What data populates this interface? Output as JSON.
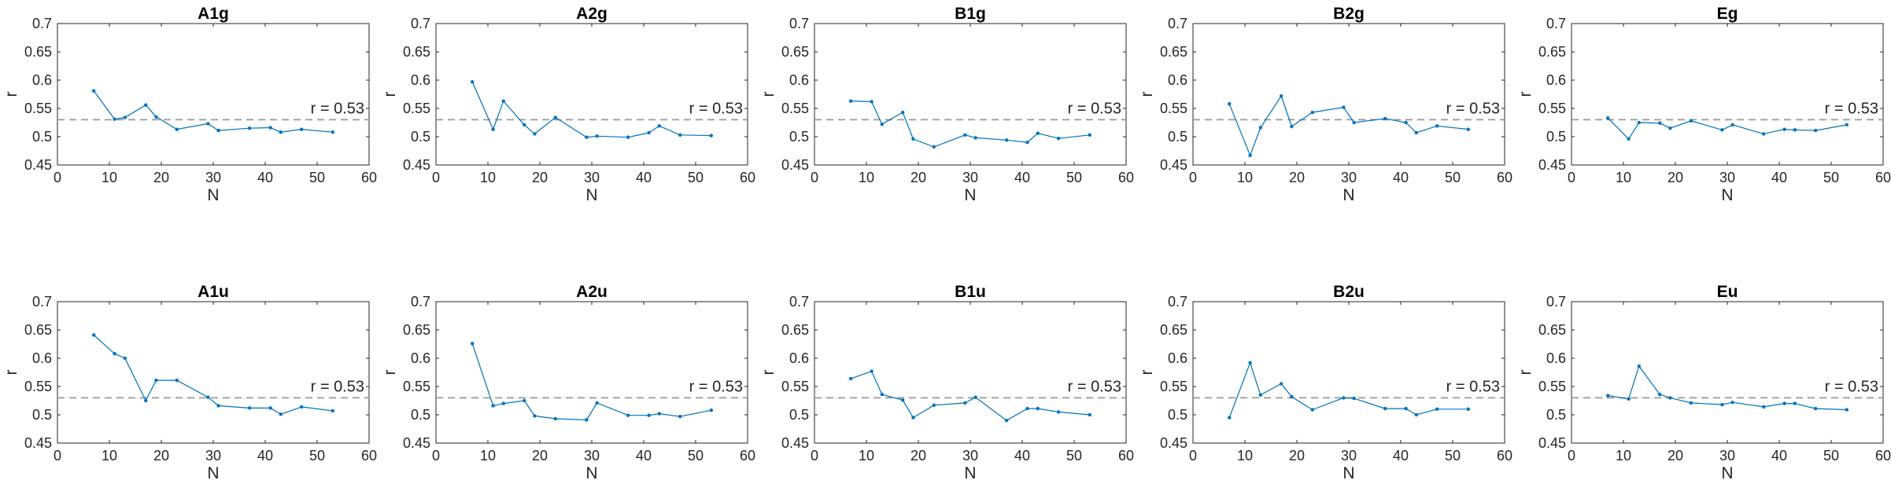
{
  "figure": {
    "xlabel": "N",
    "ylabel": "r",
    "xlim": [
      0,
      60
    ],
    "ylim": [
      0.45,
      0.7
    ],
    "xticks": [
      "0",
      "10",
      "20",
      "30",
      "40",
      "50",
      "60"
    ],
    "yticks": [
      "0.45",
      "0.5",
      "0.55",
      "0.6",
      "0.65",
      "0.7"
    ],
    "reference": {
      "value": 0.53,
      "label": "r = 0.53",
      "style": "dashed",
      "color": "#999999"
    },
    "line_color": "#0072BD",
    "grid": false,
    "layout": "2 rows x 5 columns"
  },
  "chart_data": [
    {
      "type": "line",
      "title": "A1g",
      "xlabel": "N",
      "ylabel": "r",
      "xlim": [
        0,
        60
      ],
      "ylim": [
        0.45,
        0.7
      ],
      "x": [
        7,
        11,
        13,
        17,
        19,
        23,
        29,
        31,
        37,
        41,
        43,
        47,
        53
      ],
      "y": [
        0.581,
        0.531,
        0.534,
        0.556,
        0.535,
        0.513,
        0.523,
        0.511,
        0.515,
        0.516,
        0.508,
        0.513,
        0.508
      ]
    },
    {
      "type": "line",
      "title": "A2g",
      "xlabel": "N",
      "ylabel": "r",
      "xlim": [
        0,
        60
      ],
      "ylim": [
        0.45,
        0.7
      ],
      "x": [
        7,
        11,
        13,
        17,
        19,
        23,
        29,
        31,
        37,
        41,
        43,
        47,
        53
      ],
      "y": [
        0.597,
        0.513,
        0.563,
        0.521,
        0.505,
        0.534,
        0.499,
        0.501,
        0.499,
        0.507,
        0.519,
        0.503,
        0.502
      ]
    },
    {
      "type": "line",
      "title": "B1g",
      "xlabel": "N",
      "ylabel": "r",
      "xlim": [
        0,
        60
      ],
      "ylim": [
        0.45,
        0.7
      ],
      "x": [
        7,
        11,
        13,
        17,
        19,
        23,
        29,
        31,
        37,
        41,
        43,
        47,
        53
      ],
      "y": [
        0.563,
        0.562,
        0.522,
        0.543,
        0.496,
        0.482,
        0.503,
        0.498,
        0.494,
        0.49,
        0.506,
        0.497,
        0.503
      ]
    },
    {
      "type": "line",
      "title": "B2g",
      "xlabel": "N",
      "ylabel": "r",
      "xlim": [
        0,
        60
      ],
      "ylim": [
        0.45,
        0.7
      ],
      "x": [
        7,
        11,
        13,
        17,
        19,
        23,
        29,
        31,
        37,
        41,
        43,
        47,
        53
      ],
      "y": [
        0.558,
        0.467,
        0.516,
        0.572,
        0.518,
        0.543,
        0.552,
        0.525,
        0.532,
        0.525,
        0.507,
        0.519,
        0.513
      ]
    },
    {
      "type": "line",
      "title": "Eg",
      "xlabel": "N",
      "ylabel": "r",
      "xlim": [
        0,
        60
      ],
      "ylim": [
        0.45,
        0.7
      ],
      "x": [
        7,
        11,
        13,
        17,
        19,
        23,
        29,
        31,
        37,
        41,
        43,
        47,
        53
      ],
      "y": [
        0.533,
        0.496,
        0.525,
        0.524,
        0.515,
        0.528,
        0.512,
        0.521,
        0.505,
        0.513,
        0.512,
        0.511,
        0.521
      ]
    },
    {
      "type": "line",
      "title": "A1u",
      "xlabel": "N",
      "ylabel": "r",
      "xlim": [
        0,
        60
      ],
      "ylim": [
        0.45,
        0.7
      ],
      "x": [
        7,
        11,
        13,
        17,
        19,
        23,
        29,
        31,
        37,
        41,
        43,
        47,
        53
      ],
      "y": [
        0.641,
        0.608,
        0.6,
        0.525,
        0.561,
        0.561,
        0.531,
        0.516,
        0.512,
        0.512,
        0.501,
        0.514,
        0.507
      ]
    },
    {
      "type": "line",
      "title": "A2u",
      "xlabel": "N",
      "ylabel": "r",
      "xlim": [
        0,
        60
      ],
      "ylim": [
        0.45,
        0.7
      ],
      "x": [
        7,
        11,
        13,
        17,
        19,
        23,
        29,
        31,
        37,
        41,
        43,
        47,
        53
      ],
      "y": [
        0.626,
        0.516,
        0.52,
        0.525,
        0.498,
        0.493,
        0.491,
        0.521,
        0.499,
        0.499,
        0.502,
        0.497,
        0.508
      ]
    },
    {
      "type": "line",
      "title": "B1u",
      "xlabel": "N",
      "ylabel": "r",
      "xlim": [
        0,
        60
      ],
      "ylim": [
        0.45,
        0.7
      ],
      "x": [
        7,
        11,
        13,
        17,
        19,
        23,
        29,
        31,
        37,
        41,
        43,
        47,
        53
      ],
      "y": [
        0.564,
        0.577,
        0.536,
        0.526,
        0.495,
        0.517,
        0.521,
        0.531,
        0.49,
        0.511,
        0.511,
        0.505,
        0.5
      ]
    },
    {
      "type": "line",
      "title": "B2u",
      "xlabel": "N",
      "ylabel": "r",
      "xlim": [
        0,
        60
      ],
      "ylim": [
        0.45,
        0.7
      ],
      "x": [
        7,
        11,
        13,
        17,
        19,
        23,
        29,
        31,
        37,
        41,
        43,
        47,
        53
      ],
      "y": [
        0.495,
        0.592,
        0.535,
        0.555,
        0.532,
        0.509,
        0.53,
        0.529,
        0.511,
        0.511,
        0.5,
        0.51,
        0.51
      ]
    },
    {
      "type": "line",
      "title": "Eu",
      "xlabel": "N",
      "ylabel": "r",
      "xlim": [
        0,
        60
      ],
      "ylim": [
        0.45,
        0.7
      ],
      "x": [
        7,
        11,
        13,
        17,
        19,
        23,
        29,
        31,
        37,
        41,
        43,
        47,
        53
      ],
      "y": [
        0.534,
        0.528,
        0.586,
        0.536,
        0.53,
        0.521,
        0.518,
        0.522,
        0.514,
        0.52,
        0.52,
        0.511,
        0.509
      ]
    }
  ]
}
